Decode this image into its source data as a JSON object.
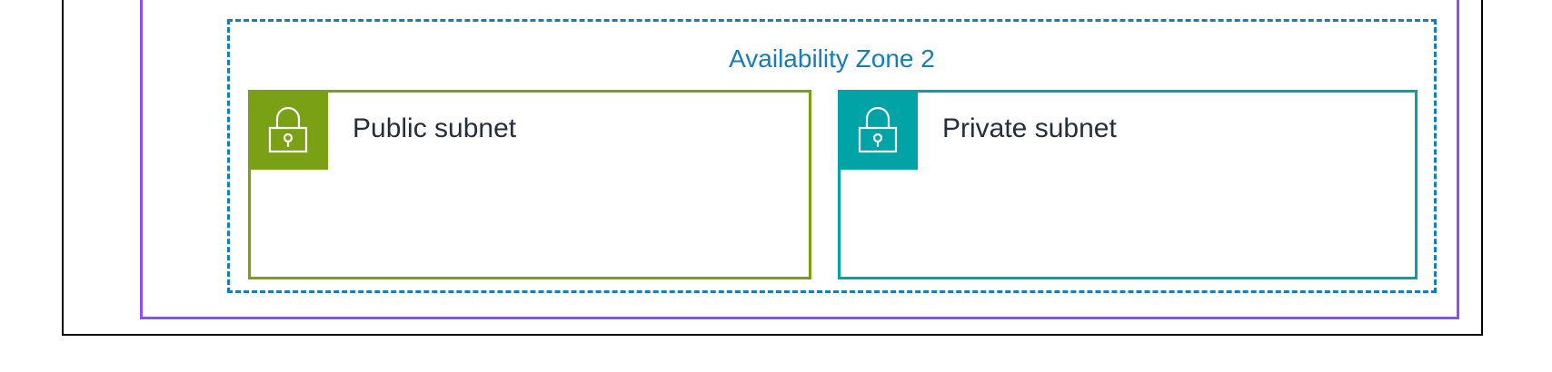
{
  "availability_zone": {
    "label": "Availability Zone 2",
    "color": "#147EBA"
  },
  "vpc": {
    "border_color": "#8C4FFF"
  },
  "subnets": [
    {
      "label": "Public subnet",
      "icon": "lock-icon",
      "color": "#7AA116"
    },
    {
      "label": "Private subnet",
      "icon": "lock-icon",
      "color": "#00A4A6"
    }
  ]
}
